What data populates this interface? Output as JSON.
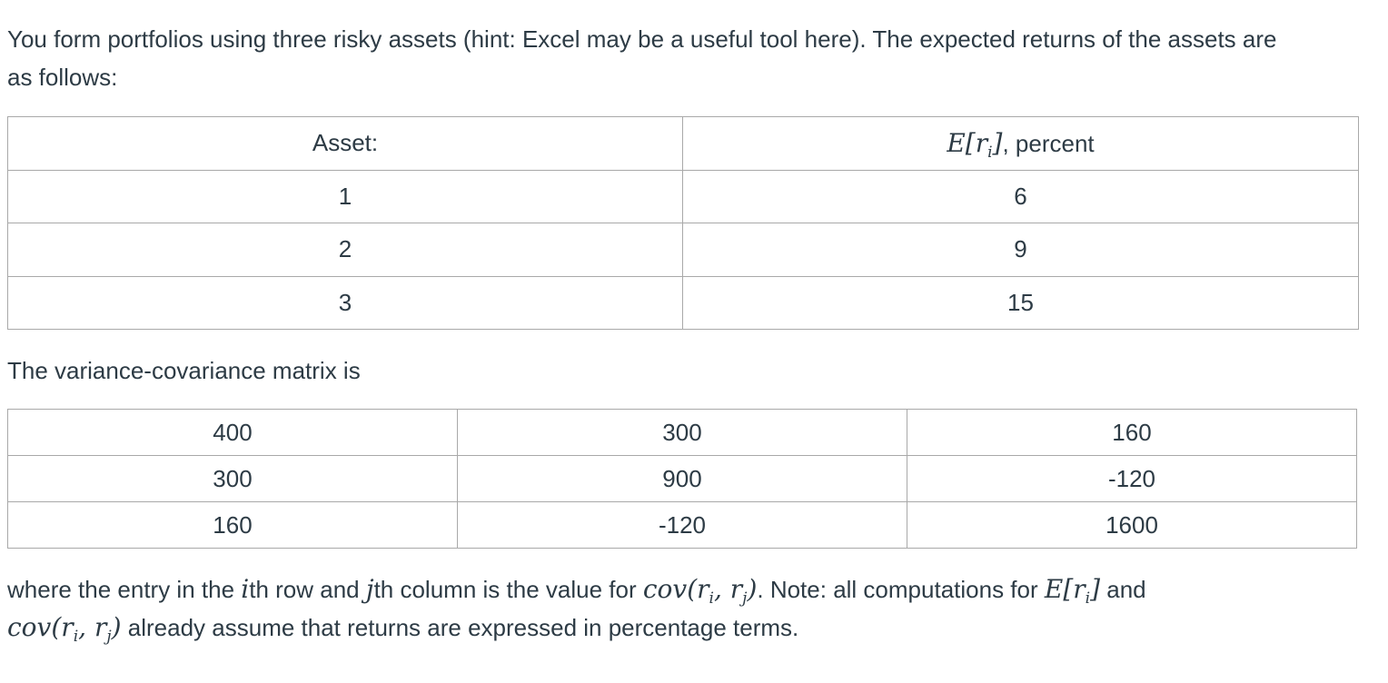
{
  "intro": {
    "line1": "You form portfolios using three risky assets (hint: Excel may be a useful tool here). The expected returns of the assets are",
    "line2": "as follows:"
  },
  "returns_table": {
    "headers": {
      "asset": "Asset:",
      "expected_symbol": "E",
      "expected_var": "r",
      "expected_sub": "i",
      "expected_suffix": ", percent"
    },
    "rows": [
      {
        "asset": "1",
        "value": "6"
      },
      {
        "asset": "2",
        "value": "9"
      },
      {
        "asset": "3",
        "value": "15"
      }
    ]
  },
  "vc_intro": "The variance-covariance matrix is",
  "cov_matrix": [
    [
      "400",
      "300",
      "160"
    ],
    [
      "300",
      "900",
      "-120"
    ],
    [
      "160",
      "-120",
      "1600"
    ]
  ],
  "note": {
    "t1": "where the entry in the ",
    "m_i": "i",
    "t2": "th row and ",
    "m_j": "j",
    "t3": "th column is the value for ",
    "m_cov": "cov",
    "t4": ". Note: all computations for ",
    "t5": " and",
    "t6": " already assume that returns are expressed in percentage terms."
  }
}
